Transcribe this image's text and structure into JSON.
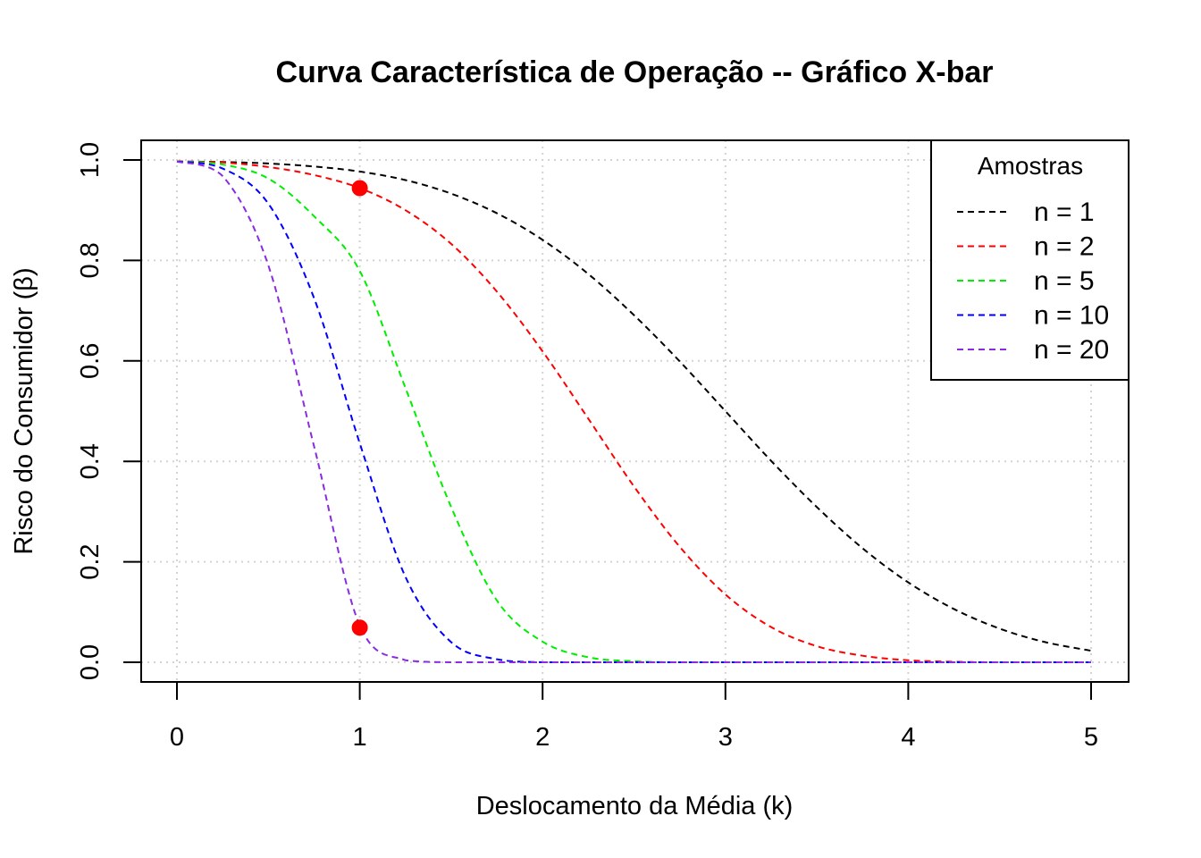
{
  "chart_data": {
    "type": "line",
    "title": "Curva Característica de Operação -- Gráfico X-bar",
    "xlabel": "Deslocamento da Média (k)",
    "ylabel": "Risco do Consumidor (β)",
    "xlim": [
      0,
      5
    ],
    "ylim": [
      0,
      1
    ],
    "x_ticks": [
      "0",
      "1",
      "2",
      "3",
      "4",
      "5"
    ],
    "y_ticks": [
      "0.0",
      "0.2",
      "0.4",
      "0.6",
      "0.8",
      "1.0"
    ],
    "grid": true,
    "line_style": "dashed",
    "legend": {
      "title": "Amostras",
      "position": "top-right"
    },
    "x": [
      0,
      0.25,
      0.5,
      0.75,
      1,
      1.25,
      1.5,
      1.75,
      2,
      2.25,
      2.5,
      2.75,
      3,
      3.25,
      3.5,
      3.75,
      4,
      4.25,
      4.5,
      4.75,
      5
    ],
    "series": [
      {
        "name": "n = 1",
        "color": "#000000",
        "values": [
          0.997,
          0.996,
          0.993,
          0.987,
          0.977,
          0.96,
          0.933,
          0.894,
          0.841,
          0.773,
          0.691,
          0.599,
          0.5,
          0.401,
          0.309,
          0.227,
          0.159,
          0.106,
          0.067,
          0.04,
          0.023
        ]
      },
      {
        "name": "n = 2",
        "color": "#ff0000",
        "values": [
          0.997,
          0.995,
          0.986,
          0.97,
          0.944,
          0.9,
          0.833,
          0.738,
          0.619,
          0.485,
          0.35,
          0.23,
          0.135,
          0.07,
          0.032,
          0.013,
          0.004,
          0.001,
          0.0,
          0.0,
          0.0
        ]
      },
      {
        "name": "n = 5",
        "color": "#00ee00",
        "values": [
          0.997,
          0.991,
          0.963,
          0.888,
          0.779,
          0.546,
          0.309,
          0.123,
          0.041,
          0.01,
          0.002,
          0.0,
          0.0,
          0.0,
          0.0,
          0.0,
          0.0,
          0.0,
          0.0,
          0.0,
          0.0
        ]
      },
      {
        "name": "n = 10",
        "color": "#0000ff",
        "values": [
          0.997,
          0.983,
          0.913,
          0.725,
          0.436,
          0.17,
          0.04,
          0.006,
          0.0,
          0.0,
          0.0,
          0.0,
          0.0,
          0.0,
          0.0,
          0.0,
          0.0,
          0.0,
          0.0,
          0.0,
          0.0
        ]
      },
      {
        "name": "n = 20",
        "color": "#8a2be2",
        "values": [
          0.997,
          0.968,
          0.79,
          0.43,
          0.073,
          0.004,
          0.0,
          0.0,
          0.0,
          0.0,
          0.0,
          0.0,
          0.0,
          0.0,
          0.0,
          0.0,
          0.0,
          0.0,
          0.0,
          0.0,
          0.0
        ]
      }
    ],
    "highlight_points": [
      {
        "x": 1,
        "y": 0.944,
        "color": "#ff0000"
      },
      {
        "x": 1,
        "y": 0.069,
        "color": "#ff0000"
      }
    ]
  }
}
